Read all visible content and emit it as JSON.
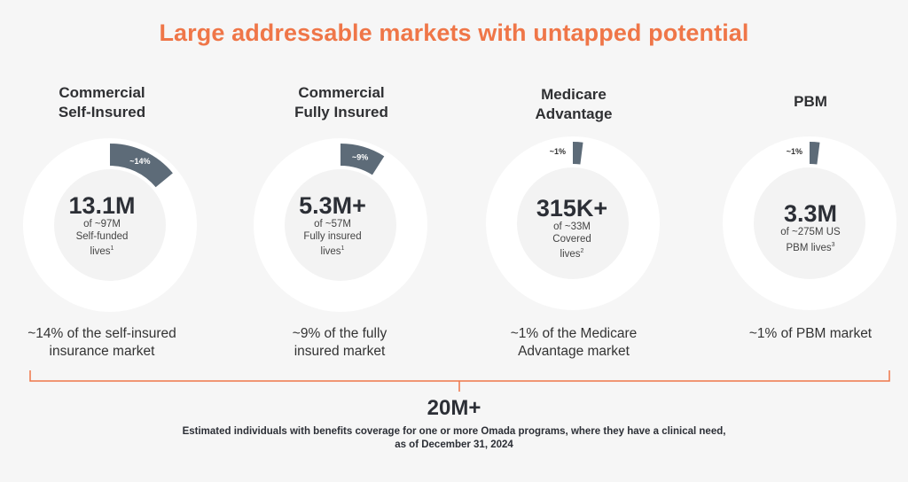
{
  "title": "Large addressable markets with untapped potential",
  "colors": {
    "accent": "#ef7648",
    "slice": "#5d6b78",
    "ring": "#ffffff",
    "inner": "#f3f3f3"
  },
  "chart_data": {
    "type": "pie",
    "markets": [
      {
        "name_lines": [
          "Commercial",
          "Self-Insured"
        ],
        "share_pct": 14,
        "slice_label": "~14%",
        "value": "13.1M",
        "desc_lines": [
          "of ~97M",
          "Self-funded",
          "lives"
        ],
        "footnote": "1",
        "caption_lines": [
          "~14% of the self-insured",
          "insurance market"
        ]
      },
      {
        "name_lines": [
          "Commercial",
          "Fully Insured"
        ],
        "share_pct": 9,
        "slice_label": "~9%",
        "value": "5.3M+",
        "desc_lines": [
          "of ~57M",
          "Fully insured",
          "lives"
        ],
        "footnote": "1",
        "caption_lines": [
          "~9% of the fully",
          "insured market"
        ]
      },
      {
        "name_lines": [
          "Medicare",
          "Advantage"
        ],
        "share_pct": 1,
        "slice_label": "~1%",
        "value": "315K+",
        "desc_lines": [
          "of ~33M",
          "Covered",
          "lives"
        ],
        "footnote": "2",
        "caption_lines": [
          "~1% of the Medicare",
          "Advantage market"
        ]
      },
      {
        "name_lines": [
          "PBM"
        ],
        "share_pct": 1,
        "slice_label": "~1%",
        "value": "3.3M",
        "desc_lines": [
          "of ~275M US",
          "PBM lives"
        ],
        "footnote": "3",
        "caption_lines": [
          "~1% of PBM market"
        ]
      }
    ]
  },
  "total": {
    "value": "20M+",
    "desc_lines": [
      "Estimated individuals with benefits coverage for one or more Omada programs, where they have a clinical need,",
      "as of December 31, 2024"
    ]
  }
}
